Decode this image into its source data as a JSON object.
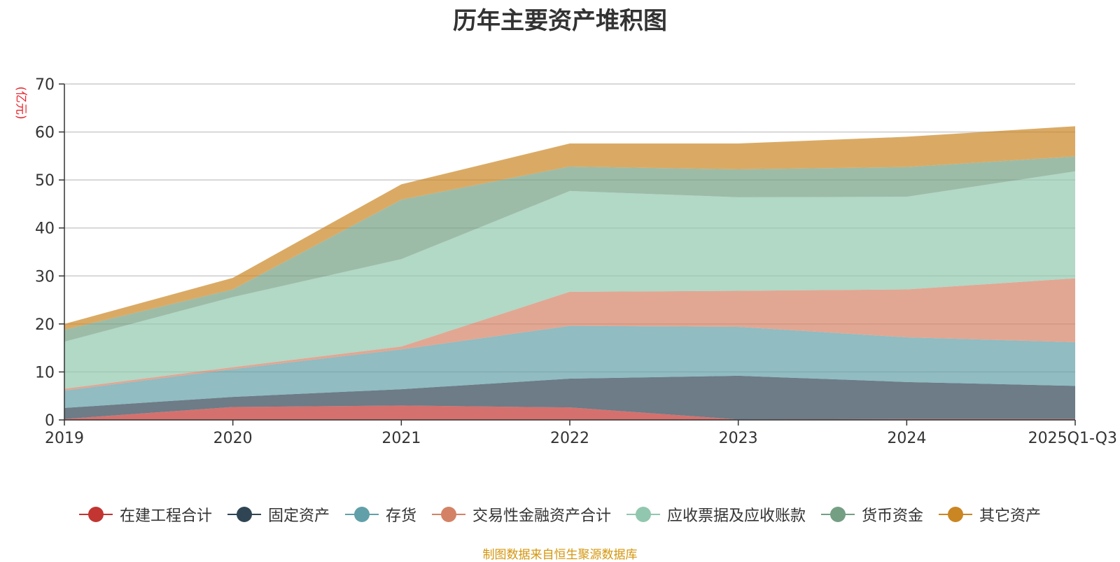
{
  "chart_data": {
    "type": "area",
    "stacked": true,
    "title": "历年主要资产堆积图",
    "ylabel": "(亿元)",
    "ylim": [
      0,
      70
    ],
    "yticks": [
      0,
      10,
      20,
      30,
      40,
      50,
      60,
      70
    ],
    "grid": true,
    "categories": [
      "2019",
      "2020",
      "2021",
      "2022",
      "2023",
      "2024",
      "2025Q1-Q3"
    ],
    "series": [
      {
        "name": "在建工程合计",
        "color": "#c23531",
        "values": [
          0.2,
          2.7,
          3.0,
          2.6,
          0.1,
          0.2,
          0.2
        ]
      },
      {
        "name": "固定资产",
        "color": "#2f4554",
        "values": [
          2.3,
          2.1,
          3.4,
          6.0,
          9.1,
          7.7,
          6.9
        ]
      },
      {
        "name": "存货",
        "color": "#61a0a8",
        "values": [
          3.6,
          5.8,
          8.3,
          11.0,
          10.2,
          9.3,
          9.1
        ]
      },
      {
        "name": "交易性金融资产合计",
        "color": "#d48265",
        "values": [
          0.4,
          0.4,
          0.6,
          7.1,
          7.5,
          10.0,
          13.3
        ]
      },
      {
        "name": "应收票据及应收账款",
        "color": "#91c7ae",
        "values": [
          9.8,
          14.6,
          18.2,
          21.0,
          19.5,
          19.3,
          22.3
        ]
      },
      {
        "name": "货币资金",
        "color": "#749f83",
        "values": [
          2.5,
          1.6,
          12.4,
          5.1,
          5.8,
          6.2,
          3.1
        ]
      },
      {
        "name": "其它资产",
        "color": "#ca8622",
        "values": [
          1.2,
          2.4,
          3.2,
          4.8,
          5.4,
          6.3,
          6.3
        ]
      }
    ]
  },
  "source_note": "制图数据来自恒生聚源数据库"
}
